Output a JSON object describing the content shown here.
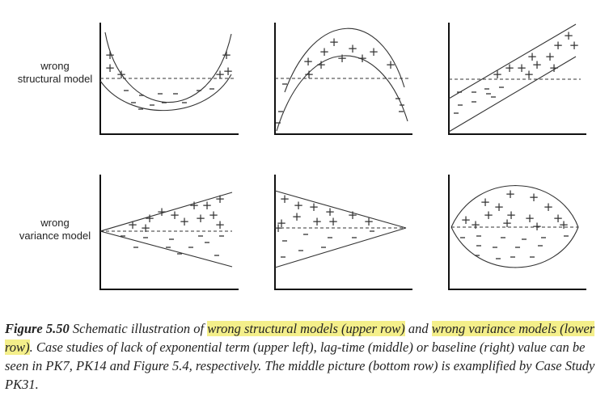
{
  "rows": [
    {
      "label_line1": "wrong",
      "label_line2": "structural model"
    },
    {
      "label_line1": "wrong",
      "label_line2": "variance model"
    }
  ],
  "caption": {
    "figure": "Figure 5.50",
    "lead": " Schematic illustration of ",
    "highlight1": "wrong structural models (upper row)",
    "mid": " and ",
    "highlight2": "wrong variance models (lower row)",
    "rest": ". Case studies of lack of exponential term (upper left), lag-time (middle) or baseline (right) value can be seen in PK7, PK14 and Figure 5.4, respectively. The middle picture (bottom row) is examplified by Case Study PK31."
  },
  "colors": {
    "highlight": "#f4ef8a",
    "ink": "#222222"
  }
}
